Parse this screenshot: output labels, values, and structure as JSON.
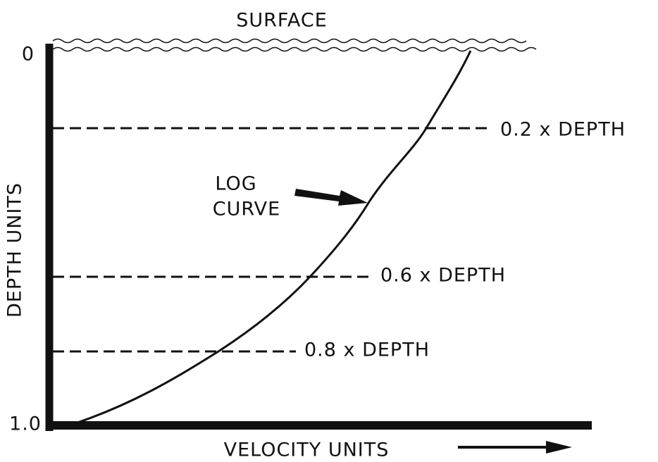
{
  "surface": "SURFACE",
  "y_axis": {
    "title": "DEPTH UNITS",
    "top": "0",
    "bottom": "1.0"
  },
  "x_axis": {
    "title": "VELOCITY UNITS"
  },
  "curve_label": [
    "LOG",
    "CURVE"
  ],
  "depth_lines": [
    "0.2 x DEPTH",
    "0.6 x DEPTH",
    "0.8 x DEPTH"
  ]
}
